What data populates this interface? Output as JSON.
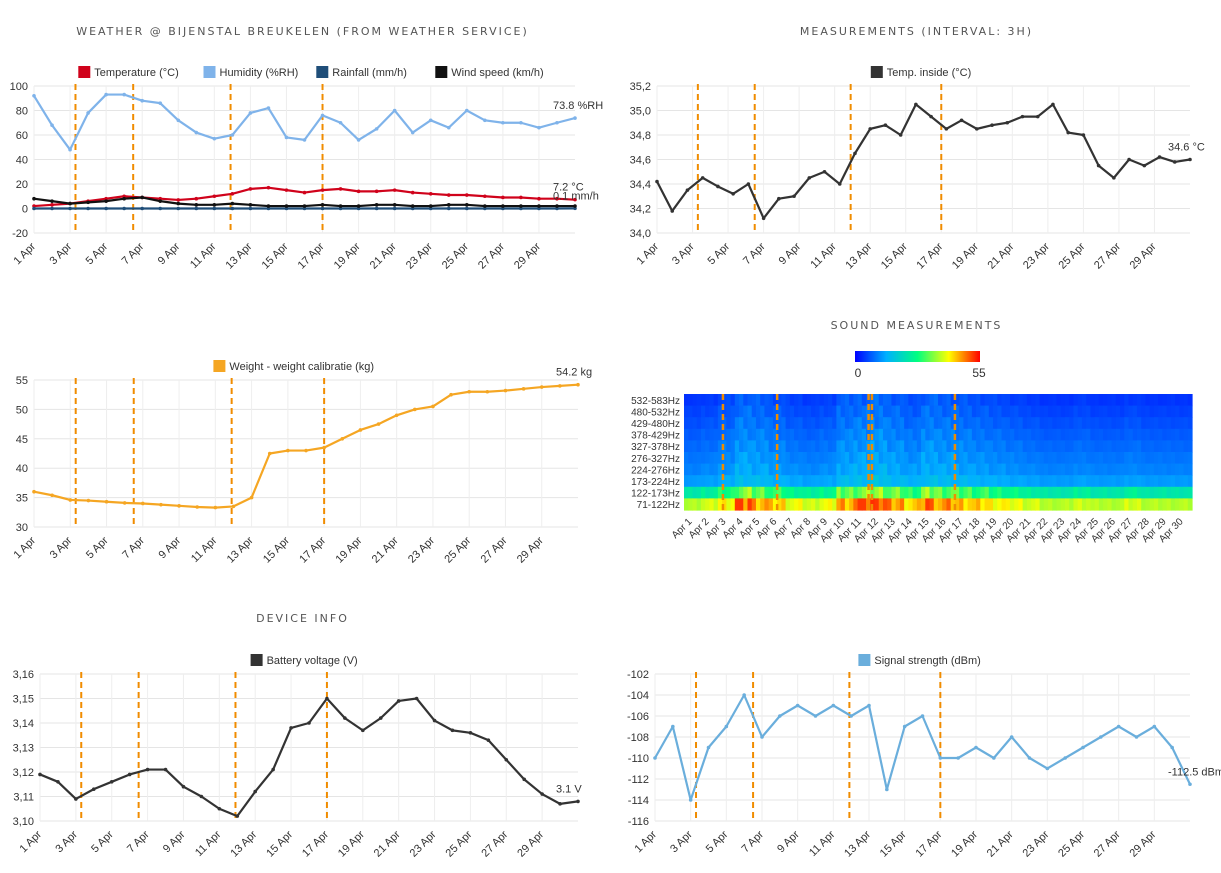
{
  "sections": {
    "weather": "WEATHER @ BIJENSTAL BREUKELEN (FROM WEATHER SERVICE)",
    "measurements": "MEASUREMENTS (INTERVAL: 3H)",
    "sound": "SOUND MEASUREMENTS",
    "device": "DEVICE INFO"
  },
  "colors": {
    "temperature": "#d0021b",
    "humidity": "#7fb3ea",
    "rainfall": "#1f4e79",
    "wind": "#111111",
    "temp_inside": "#333333",
    "weight": "#f5a623",
    "battery": "#333333",
    "signal": "#6aaedc",
    "marker": "#f08c00"
  },
  "chart_data": [
    {
      "id": "weather",
      "type": "line",
      "legend_position": "top",
      "grid": true,
      "x_ticks": [
        "1 Apr",
        "3 Apr",
        "5 Apr",
        "7 Apr",
        "9 Apr",
        "11 Apr",
        "13 Apr",
        "15 Apr",
        "17 Apr",
        "19 Apr",
        "21 Apr",
        "23 Apr",
        "25 Apr",
        "27 Apr",
        "29 Apr"
      ],
      "y_ticks": [
        "100",
        "80",
        "60",
        "40",
        "20",
        "0",
        "-20"
      ],
      "ylim": [
        -20,
        100
      ],
      "xlim": [
        1,
        31
      ],
      "markers": [
        3.3,
        6.5,
        11.9,
        17.0
      ],
      "series": [
        {
          "name": "Temperature (°C)",
          "key": "temperature",
          "last_label": "7.2 °C",
          "values": [
            2,
            3,
            4,
            6,
            8,
            10,
            9,
            8,
            7,
            8,
            10,
            12,
            16,
            17,
            15,
            13,
            15,
            16,
            14,
            14,
            15,
            13,
            12,
            11,
            11,
            10,
            9,
            9,
            8,
            8,
            7.2
          ]
        },
        {
          "name": "Humidity (%RH)",
          "key": "humidity",
          "last_label": "73.8 %RH",
          "values": [
            92,
            68,
            48,
            78,
            93,
            93,
            88,
            86,
            72,
            62,
            57,
            60,
            78,
            82,
            58,
            56,
            76,
            70,
            56,
            65,
            80,
            62,
            72,
            66,
            80,
            72,
            70,
            70,
            66,
            70,
            73.8
          ]
        },
        {
          "name": "Rainfall (mm/h)",
          "key": "rainfall",
          "last_label": "0.1 mm/h",
          "values": [
            0,
            0,
            0,
            0,
            0,
            0,
            0,
            0,
            0,
            0,
            0,
            0,
            0,
            0,
            0,
            0,
            0,
            0,
            0,
            0,
            0,
            0,
            0,
            0,
            0,
            0,
            0,
            0,
            0,
            0,
            0.1
          ]
        },
        {
          "name": "Wind speed (km/h)",
          "key": "wind",
          "last_label": "",
          "values": [
            8,
            6,
            4,
            5,
            6,
            8,
            9,
            6,
            4,
            3,
            3,
            4,
            3,
            2,
            2,
            2,
            3,
            2,
            2,
            3,
            3,
            2,
            2,
            3,
            3,
            2,
            2,
            2,
            2,
            2,
            2
          ]
        }
      ]
    },
    {
      "id": "temp_inside",
      "type": "line",
      "legend_position": "top",
      "grid": true,
      "x_ticks": [
        "1 Apr",
        "3 Apr",
        "5 Apr",
        "7 Apr",
        "9 Apr",
        "11 Apr",
        "13 Apr",
        "15 Apr",
        "17 Apr",
        "19 Apr",
        "21 Apr",
        "23 Apr",
        "25 Apr",
        "27 Apr",
        "29 Apr"
      ],
      "y_ticks": [
        "35,2",
        "35,0",
        "34,8",
        "34,6",
        "34,4",
        "34,2",
        "34,0"
      ],
      "ylim": [
        34.0,
        35.2
      ],
      "xlim": [
        1,
        31
      ],
      "markers": [
        3.3,
        6.5,
        11.9,
        17.0
      ],
      "series": [
        {
          "name": "Temp. inside (°C)",
          "key": "temp_inside",
          "last_label": "34.6 °C",
          "values": [
            34.42,
            34.18,
            34.35,
            34.45,
            34.38,
            34.32,
            34.4,
            34.12,
            34.28,
            34.3,
            34.45,
            34.5,
            34.4,
            34.65,
            34.85,
            34.88,
            34.8,
            35.05,
            34.95,
            34.85,
            34.92,
            34.85,
            34.88,
            34.9,
            34.95,
            34.95,
            35.05,
            34.82,
            34.8,
            34.55,
            34.45,
            34.6,
            34.55,
            34.62,
            34.58,
            34.6
          ]
        }
      ]
    },
    {
      "id": "weight",
      "type": "line",
      "legend_position": "top",
      "grid": true,
      "x_ticks": [
        "1 Apr",
        "3 Apr",
        "5 Apr",
        "7 Apr",
        "9 Apr",
        "11 Apr",
        "13 Apr",
        "15 Apr",
        "17 Apr",
        "19 Apr",
        "21 Apr",
        "23 Apr",
        "25 Apr",
        "27 Apr",
        "29 Apr"
      ],
      "y_ticks": [
        "55",
        "50",
        "45",
        "40",
        "35",
        "30"
      ],
      "ylim": [
        30,
        55
      ],
      "xlim": [
        1,
        31
      ],
      "markers": [
        3.3,
        6.5,
        11.9,
        17.0
      ],
      "series": [
        {
          "name": "Weight - weight calibratie (kg)",
          "key": "weight",
          "last_label": "54.2 kg",
          "values": [
            36.0,
            35.4,
            34.6,
            34.5,
            34.3,
            34.1,
            34.0,
            33.8,
            33.6,
            33.4,
            33.3,
            33.5,
            35.0,
            42.5,
            43.0,
            43.0,
            43.5,
            45.0,
            46.5,
            47.5,
            49.0,
            50.0,
            50.5,
            52.5,
            53.0,
            53.0,
            53.2,
            53.5,
            53.8,
            54.0,
            54.2
          ]
        }
      ]
    },
    {
      "id": "sound",
      "type": "heatmap",
      "colorbar": {
        "min": "0",
        "max": "55"
      },
      "rows": [
        "532-583Hz",
        "480-532Hz",
        "429-480Hz",
        "378-429Hz",
        "327-378Hz",
        "276-327Hz",
        "224-276Hz",
        "173-224Hz",
        "122-173Hz",
        "71-122Hz"
      ],
      "x_ticks": [
        "Apr 1",
        "Apr 2",
        "Apr 3",
        "Apr 4",
        "Apr 5",
        "Apr 6",
        "Apr 7",
        "Apr 8",
        "Apr 9",
        "Apr 10",
        "Apr 11",
        "Apr 12",
        "Apr 13",
        "Apr 14",
        "Apr 15",
        "Apr 16",
        "Apr 17",
        "Apr 18",
        "Apr 19",
        "Apr 20",
        "Apr 21",
        "Apr 22",
        "Apr 23",
        "Apr 24",
        "Apr 25",
        "Apr 26",
        "Apr 27",
        "Apr 28",
        "Apr 29",
        "Apr 30"
      ],
      "row_base": [
        3,
        4,
        5,
        6,
        7,
        8,
        9,
        11,
        20,
        34
      ],
      "day_activity": [
        0.2,
        0.3,
        0.5,
        0.9,
        0.8,
        0.6,
        0.4,
        0.3,
        0.4,
        0.8,
        0.9,
        1.0,
        0.8,
        0.6,
        0.9,
        0.8,
        0.7,
        0.6,
        0.5,
        0.4,
        0.3,
        0.2,
        0.2,
        0.3,
        0.2,
        0.2,
        0.3,
        0.2,
        0.2,
        0.2
      ],
      "markers": [
        3.3,
        6.5,
        11.9,
        12.1,
        17.0
      ]
    },
    {
      "id": "battery",
      "type": "line",
      "legend_position": "top",
      "grid": true,
      "x_ticks": [
        "1 Apr",
        "3 Apr",
        "5 Apr",
        "7 Apr",
        "9 Apr",
        "11 Apr",
        "13 Apr",
        "15 Apr",
        "17 Apr",
        "19 Apr",
        "21 Apr",
        "23 Apr",
        "25 Apr",
        "27 Apr",
        "29 Apr"
      ],
      "y_ticks": [
        "3,16",
        "3,15",
        "3,14",
        "3,13",
        "3,12",
        "3,11",
        "3,10"
      ],
      "ylim": [
        3.1,
        3.16
      ],
      "xlim": [
        1,
        31
      ],
      "markers": [
        3.3,
        6.5,
        11.9,
        17.0
      ],
      "series": [
        {
          "name": "Battery voltage (V)",
          "key": "battery",
          "last_label": "3.1 V",
          "values": [
            3.119,
            3.116,
            3.109,
            3.113,
            3.116,
            3.119,
            3.121,
            3.121,
            3.114,
            3.11,
            3.105,
            3.102,
            3.112,
            3.121,
            3.138,
            3.14,
            3.15,
            3.142,
            3.137,
            3.142,
            3.149,
            3.15,
            3.141,
            3.137,
            3.136,
            3.133,
            3.125,
            3.117,
            3.111,
            3.107,
            3.108
          ]
        }
      ]
    },
    {
      "id": "signal",
      "type": "line",
      "legend_position": "top",
      "grid": true,
      "x_ticks": [
        "1 Apr",
        "3 Apr",
        "5 Apr",
        "7 Apr",
        "9 Apr",
        "11 Apr",
        "13 Apr",
        "15 Apr",
        "17 Apr",
        "19 Apr",
        "21 Apr",
        "23 Apr",
        "25 Apr",
        "27 Apr",
        "29 Apr"
      ],
      "y_ticks": [
        "-102",
        "-104",
        "-106",
        "-108",
        "-110",
        "-112",
        "-114",
        "-116"
      ],
      "ylim": [
        -116,
        -102
      ],
      "xlim": [
        1,
        31
      ],
      "markers": [
        3.3,
        6.5,
        11.9,
        17.0
      ],
      "series": [
        {
          "name": "Signal strength (dBm)",
          "key": "signal",
          "last_label": "-112.5 dBm",
          "values": [
            -110,
            -107,
            -114,
            -109,
            -107,
            -104,
            -108,
            -106,
            -105,
            -106,
            -105,
            -106,
            -105,
            -113,
            -107,
            -106,
            -110,
            -110,
            -109,
            -110,
            -108,
            -110,
            -111,
            -110,
            -109,
            -108,
            -107,
            -108,
            -107,
            -109,
            -112.5
          ]
        }
      ]
    }
  ]
}
